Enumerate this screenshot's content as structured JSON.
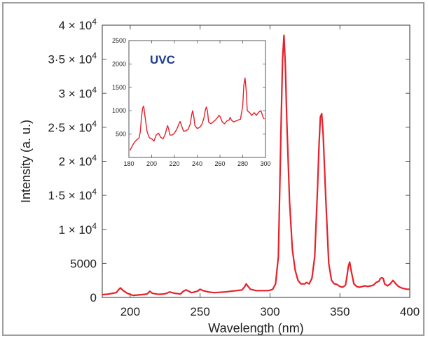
{
  "chart_data": [
    {
      "type": "line",
      "title": "",
      "xlabel": "Wavelength (nm)",
      "ylabel": "Intensity (a. u.)",
      "xlim": [
        180,
        400
      ],
      "ylim": [
        0,
        40000
      ],
      "x_ticks": [
        200,
        250,
        300,
        350,
        400
      ],
      "x_tick_labels": [
        "200",
        "250",
        "300",
        "350",
        "400"
      ],
      "y_ticks": [
        0,
        5000,
        10000,
        15000,
        20000,
        25000,
        30000,
        35000,
        40000
      ],
      "y_tick_labels": [
        {
          "mantissa": "0",
          "exp": ""
        },
        {
          "mantissa": "5000",
          "exp": ""
        },
        {
          "mantissa": "1 × 10",
          "exp": "4"
        },
        {
          "mantissa": "1·5 × 10",
          "exp": "4"
        },
        {
          "mantissa": "2 × 10",
          "exp": "4"
        },
        {
          "mantissa": "2·5 × 10",
          "exp": "4"
        },
        {
          "mantissa": "3 × 10",
          "exp": "4"
        },
        {
          "mantissa": "3·5 × 10",
          "exp": "4"
        },
        {
          "mantissa": "4 × 10",
          "exp": "4"
        }
      ],
      "grid": false,
      "line_color": "#e8202a",
      "series": [
        {
          "x": [
            180,
            185,
            190,
            192,
            193,
            195,
            198,
            202,
            205,
            208,
            212,
            214,
            216,
            220,
            224,
            226,
            228,
            232,
            236,
            238,
            240,
            244,
            248,
            250,
            252,
            256,
            260,
            264,
            268,
            272,
            276,
            280,
            282,
            283,
            284,
            286,
            290,
            294,
            298,
            300,
            302,
            304,
            306,
            308,
            309,
            310,
            311,
            312,
            314,
            316,
            318,
            320,
            322,
            325,
            326,
            328,
            330,
            332,
            334,
            335,
            336,
            337,
            338,
            340,
            342,
            344,
            346,
            348,
            350,
            352,
            354,
            355,
            356,
            357,
            358,
            360,
            362,
            364,
            366,
            368,
            370,
            372,
            374,
            376,
            378,
            379,
            380,
            381,
            382,
            384,
            386,
            388,
            390,
            392,
            394,
            396,
            398,
            400
          ],
          "y": [
            400,
            500,
            700,
            1200,
            1400,
            1000,
            600,
            300,
            350,
            400,
            500,
            900,
            600,
            450,
            500,
            600,
            800,
            600,
            500,
            900,
            1100,
            700,
            900,
            1200,
            1000,
            800,
            700,
            750,
            800,
            900,
            1000,
            1100,
            1600,
            2000,
            1700,
            1200,
            1000,
            1000,
            1000,
            1050,
            1200,
            2000,
            6000,
            26000,
            35000,
            38500,
            34000,
            26000,
            14000,
            7000,
            4000,
            2500,
            2000,
            2000,
            2200,
            2000,
            2800,
            6000,
            16000,
            22000,
            26500,
            27000,
            24000,
            14000,
            5000,
            2500,
            2000,
            1900,
            1600,
            1500,
            1800,
            3000,
            4500,
            5200,
            4000,
            2000,
            1600,
            1500,
            1600,
            1700,
            1600,
            1700,
            1800,
            2200,
            2400,
            2800,
            2900,
            2800,
            2000,
            1700,
            2000,
            2500,
            2000,
            1600,
            1400,
            1300,
            1200,
            1200
          ]
        }
      ]
    },
    {
      "type": "line",
      "title": "UVC",
      "title_color": "#1f3c8f",
      "xlabel": "",
      "ylabel": "",
      "xlim": [
        180,
        300
      ],
      "ylim": [
        0,
        2500
      ],
      "x_ticks": [
        180,
        200,
        220,
        240,
        260,
        280,
        300
      ],
      "x_tick_labels": [
        "180",
        "200",
        "220",
        "240",
        "260",
        "280",
        "300"
      ],
      "y_ticks": [
        500,
        1000,
        1500,
        2000,
        2500
      ],
      "y_tick_labels": [
        "500",
        "1000",
        "1500",
        "2000",
        "2500"
      ],
      "grid": false,
      "line_color": "#e8202a",
      "series": [
        {
          "x": [
            181,
            183,
            185,
            187,
            189,
            190,
            191,
            192,
            193,
            194,
            196,
            198,
            200,
            202,
            204,
            206,
            208,
            210,
            212,
            213,
            214,
            215,
            216,
            218,
            220,
            222,
            224,
            225,
            226,
            228,
            230,
            232,
            234,
            235,
            236,
            237,
            238,
            240,
            242,
            244,
            246,
            247,
            248,
            249,
            250,
            252,
            254,
            256,
            258,
            259,
            260,
            262,
            264,
            266,
            268,
            269,
            270,
            272,
            274,
            276,
            278,
            280,
            281,
            282,
            283,
            284,
            286,
            288,
            290,
            292,
            294,
            296,
            298,
            299
          ],
          "y": [
            150,
            250,
            330,
            380,
            420,
            550,
            850,
            1050,
            1100,
            900,
            550,
            420,
            400,
            350,
            480,
            520,
            430,
            400,
            500,
            600,
            680,
            600,
            480,
            480,
            520,
            600,
            720,
            770,
            700,
            560,
            570,
            600,
            720,
            900,
            1000,
            880,
            680,
            620,
            640,
            700,
            850,
            1000,
            1080,
            1000,
            760,
            720,
            760,
            800,
            860,
            900,
            880,
            760,
            720,
            780,
            800,
            860,
            800,
            760,
            780,
            800,
            820,
            1100,
            1550,
            1700,
            1450,
            1000,
            960,
            900,
            960,
            900,
            970,
            1000,
            850,
            820
          ]
        }
      ]
    }
  ]
}
